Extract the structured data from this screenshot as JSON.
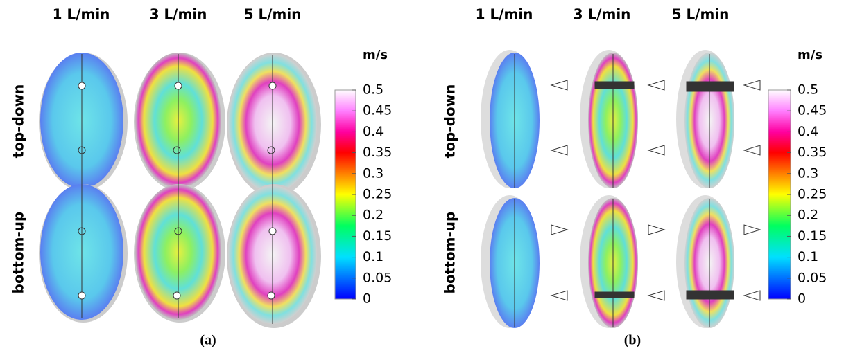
{
  "panels": [
    {
      "label": "(a)",
      "columns": [
        "1 L/min",
        "3 L/min",
        "5 L/min"
      ],
      "rows": [
        "top-down",
        "bottom-up"
      ],
      "colorbar": {
        "unit": "m/s",
        "lim": [
          0,
          0.5
        ],
        "ticks": [
          0,
          0.05,
          0.1,
          0.15,
          0.2,
          0.25,
          0.3,
          0.35,
          0.4,
          0.45,
          0.5
        ]
      }
    },
    {
      "label": "(b)",
      "columns": [
        "1 L/min",
        "3 L/min",
        "5 L/min"
      ],
      "rows": [
        "top-down",
        "bottom-up"
      ],
      "colorbar": {
        "unit": "m/s",
        "lim": [
          0,
          0.5
        ],
        "ticks": [
          0,
          0.05,
          0.1,
          0.15,
          0.2,
          0.25,
          0.3,
          0.35,
          0.4,
          0.45,
          0.5
        ]
      }
    }
  ]
}
